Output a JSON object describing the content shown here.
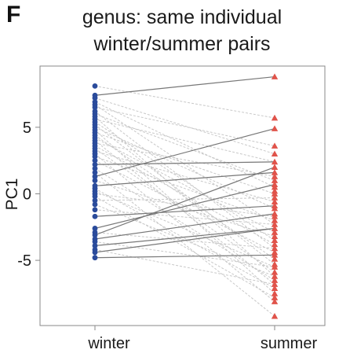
{
  "panel_label": "F",
  "chart_data": {
    "type": "scatter",
    "title_lines": [
      "genus: same individual",
      "winter/summer pairs"
    ],
    "xlabel": "",
    "ylabel": "PC1",
    "categories": [
      "winter",
      "summer"
    ],
    "y_ticks": [
      -5,
      0,
      5
    ],
    "ylim": [
      -9.9,
      9.6
    ],
    "grid": false,
    "colors": {
      "winter": "#2a4b9b",
      "summer": "#e0534a",
      "paired_line": "#777777",
      "unpaired_line": "#c8c8c8",
      "frame": "#888888"
    },
    "series": [
      {
        "name": "winter",
        "marker": "circle",
        "values": [
          8.1,
          7.4,
          7.2,
          6.9,
          6.7,
          6.5,
          6.2,
          6.0,
          5.8,
          5.6,
          5.4,
          5.2,
          5.0,
          4.8,
          4.6,
          4.4,
          4.2,
          4.0,
          3.8,
          3.6,
          3.4,
          3.2,
          3.0,
          2.8,
          2.5,
          2.2,
          1.9,
          1.6,
          1.3,
          1.0,
          0.6,
          0.4,
          0.2,
          0.0,
          -0.2,
          -0.5,
          -0.8,
          -1.2,
          -1.7,
          -2.6,
          -2.9,
          -3.1,
          -3.4,
          -3.6,
          -3.9,
          -4.2,
          -4.4,
          -4.8
        ]
      },
      {
        "name": "summer",
        "marker": "triangle",
        "values": [
          8.8,
          5.7,
          4.9,
          3.6,
          3.0,
          2.4,
          2.0,
          1.6,
          1.3,
          1.0,
          0.7,
          0.5,
          0.2,
          0.0,
          -0.3,
          -0.6,
          -0.9,
          -1.1,
          -1.5,
          -1.7,
          -2.0,
          -2.3,
          -2.6,
          -2.9,
          -3.2,
          -3.5,
          -3.8,
          -4.1,
          -4.4,
          -4.6,
          -4.9,
          -5.3,
          -5.5,
          -5.9,
          -6.2,
          -6.5,
          -6.8,
          -7.1,
          -7.5,
          -7.8,
          -8.1,
          -9.2
        ]
      }
    ],
    "paired_lines": [
      {
        "winter": 7.4,
        "summer": 8.8
      },
      {
        "winter": 1.3,
        "summer": 4.9
      },
      {
        "winter": 0.6,
        "summer": 1.6
      },
      {
        "winter": 2.2,
        "summer": 2.4
      },
      {
        "winter": -1.7,
        "summer": -0.9
      },
      {
        "winter": -2.6,
        "summer": 0.7
      },
      {
        "winter": -3.1,
        "summer": 2.0
      },
      {
        "winter": -3.4,
        "summer": -1.5
      },
      {
        "winter": -3.9,
        "summer": -2.6
      },
      {
        "winter": -4.4,
        "summer": -2.6
      },
      {
        "winter": -4.8,
        "summer": -4.6
      }
    ],
    "unpaired_lines": [
      {
        "winter": 8.1,
        "summer": 5.7
      },
      {
        "winter": 7.2,
        "summer": 3.0
      },
      {
        "winter": 6.9,
        "summer": 0.5
      },
      {
        "winter": 6.7,
        "summer": -2.3
      },
      {
        "winter": 6.5,
        "summer": 3.6
      },
      {
        "winter": 6.2,
        "summer": -4.1
      },
      {
        "winter": 6.0,
        "summer": 1.0
      },
      {
        "winter": 5.8,
        "summer": -6.2
      },
      {
        "winter": 5.6,
        "summer": 2.4
      },
      {
        "winter": 5.4,
        "summer": -3.5
      },
      {
        "winter": 5.2,
        "summer": -5.3
      },
      {
        "winter": 5.0,
        "summer": -1.1
      },
      {
        "winter": 4.8,
        "summer": -7.5
      },
      {
        "winter": 4.6,
        "summer": 0.0
      },
      {
        "winter": 4.4,
        "summer": -4.9
      },
      {
        "winter": 4.2,
        "summer": -2.9
      },
      {
        "winter": 4.0,
        "summer": -6.8
      },
      {
        "winter": 3.8,
        "summer": 1.3
      },
      {
        "winter": 3.6,
        "summer": -3.8
      },
      {
        "winter": 3.4,
        "summer": -5.9
      },
      {
        "winter": 3.2,
        "summer": -0.6
      },
      {
        "winter": 3.0,
        "summer": -8.1
      },
      {
        "winter": 2.8,
        "summer": -2.0
      },
      {
        "winter": 2.5,
        "summer": -4.4
      },
      {
        "winter": 1.9,
        "summer": -6.5
      },
      {
        "winter": 1.6,
        "summer": -9.2
      },
      {
        "winter": 1.0,
        "summer": -3.2
      },
      {
        "winter": 0.4,
        "summer": -7.1
      },
      {
        "winter": 0.2,
        "summer": -5.5
      },
      {
        "winter": 0.0,
        "summer": -1.7
      },
      {
        "winter": -0.2,
        "summer": -7.8
      },
      {
        "winter": -0.5,
        "summer": -0.3
      },
      {
        "winter": -0.8,
        "summer": -6.2
      },
      {
        "winter": -1.2,
        "summer": -2.3
      },
      {
        "winter": -2.9,
        "summer": -4.1
      },
      {
        "winter": -3.6,
        "summer": -5.5
      },
      {
        "winter": -4.2,
        "summer": -6.8
      }
    ]
  }
}
